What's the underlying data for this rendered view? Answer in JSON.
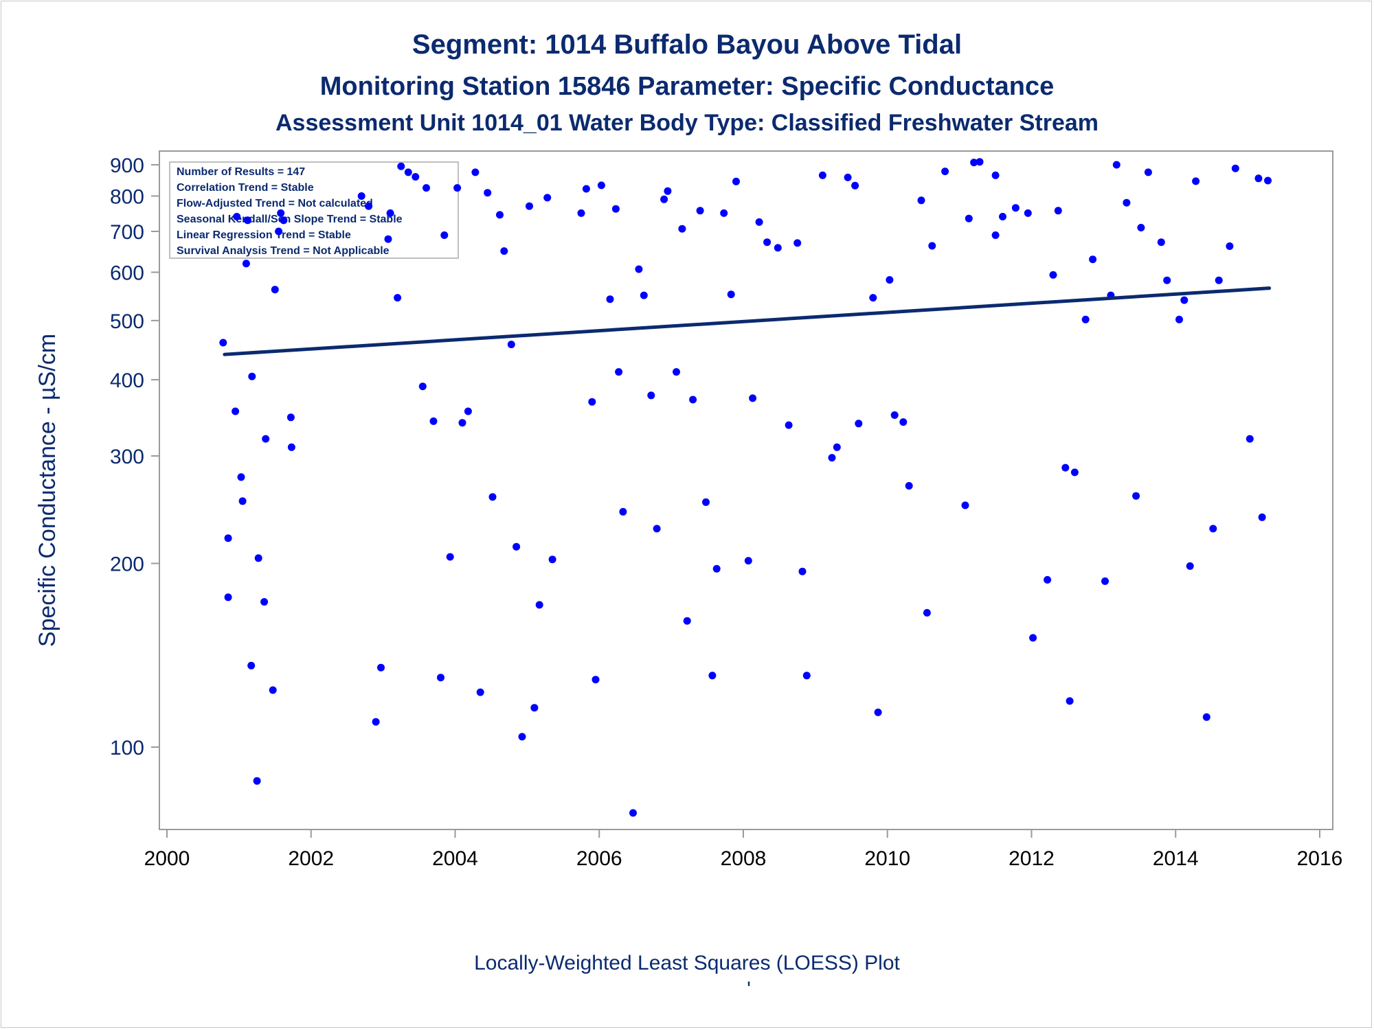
{
  "titles": {
    "line1": "Segment: 1014  Buffalo Bayou Above Tidal",
    "line2": "Monitoring Station 15846 Parameter: Specific Conductance",
    "line3": "Assessment Unit 1014_01   Water Body Type: Classified Freshwater Stream"
  },
  "stats_box": [
    "Number of Results = 147",
    "Correlation Trend = Stable",
    "Flow-Adjusted Trend = Not calculated",
    "Seasonal Kendall/Sen Slope Trend = Stable",
    "Linear Regression Trend = Stable",
    "Survival Analysis Trend = Not Applicable"
  ],
  "footer": {
    "caption": "Locally-Weighted Least Squares (LOESS) Plot",
    "mark": "'"
  },
  "colors": {
    "title": "#0b2a6f",
    "points": "#0000ff",
    "trend_line": "#0b2a6f",
    "axis": "#9a9a9a"
  },
  "chart_data": {
    "type": "scatter",
    "title": "Segment: 1014  Buffalo Bayou Above Tidal",
    "xlabel": "",
    "ylabel": "Specific Conductance -  µS/cm",
    "x_scale": "linear (year)",
    "y_scale": "log",
    "xlim": [
      2000,
      2016
    ],
    "ylim": [
      77,
      960
    ],
    "x_ticks": [
      "2000",
      "2002",
      "2004",
      "2006",
      "2008",
      "2010",
      "2012",
      "2014",
      "2016"
    ],
    "y_ticks": [
      "100",
      "200",
      "300",
      "400",
      "500",
      "600",
      "700",
      "800",
      "900"
    ],
    "grid": false,
    "trend_line": {
      "name": "LOESS",
      "x": [
        2000.8,
        2015.3
      ],
      "y": [
        440,
        565
      ]
    },
    "points": [
      [
        2000.78,
        460
      ],
      [
        2000.85,
        220
      ],
      [
        2000.85,
        176
      ],
      [
        2000.95,
        355
      ],
      [
        2000.97,
        740
      ],
      [
        2001.03,
        277
      ],
      [
        2001.05,
        253
      ],
      [
        2001.1,
        620
      ],
      [
        2001.12,
        730
      ],
      [
        2001.17,
        136
      ],
      [
        2001.18,
        405
      ],
      [
        2001.25,
        88
      ],
      [
        2001.27,
        204
      ],
      [
        2001.35,
        173
      ],
      [
        2001.37,
        320
      ],
      [
        2001.47,
        124
      ],
      [
        2001.5,
        562
      ],
      [
        2001.55,
        700
      ],
      [
        2001.58,
        750
      ],
      [
        2001.62,
        730
      ],
      [
        2001.72,
        347
      ],
      [
        2001.73,
        310
      ],
      [
        2002.7,
        800
      ],
      [
        2002.8,
        770
      ],
      [
        2002.9,
        110
      ],
      [
        2002.97,
        135
      ],
      [
        2003.07,
        680
      ],
      [
        2003.1,
        750
      ],
      [
        2003.2,
        545
      ],
      [
        2003.25,
        895
      ],
      [
        2003.35,
        875
      ],
      [
        2003.45,
        860
      ],
      [
        2003.55,
        390
      ],
      [
        2003.6,
        825
      ],
      [
        2003.7,
        342
      ],
      [
        2003.8,
        130
      ],
      [
        2003.85,
        690
      ],
      [
        2003.93,
        205
      ],
      [
        2004.03,
        825
      ],
      [
        2004.1,
        340
      ],
      [
        2004.18,
        355
      ],
      [
        2004.28,
        875
      ],
      [
        2004.35,
        123
      ],
      [
        2004.45,
        810
      ],
      [
        2004.52,
        257
      ],
      [
        2004.62,
        745
      ],
      [
        2004.68,
        650
      ],
      [
        2004.78,
        457
      ],
      [
        2004.85,
        213
      ],
      [
        2004.93,
        104
      ],
      [
        2005.03,
        770
      ],
      [
        2005.1,
        116
      ],
      [
        2005.17,
        171
      ],
      [
        2005.28,
        795
      ],
      [
        2005.35,
        203
      ],
      [
        2005.75,
        750
      ],
      [
        2005.82,
        822
      ],
      [
        2005.9,
        368
      ],
      [
        2005.95,
        129
      ],
      [
        2006.03,
        833
      ],
      [
        2006.15,
        542
      ],
      [
        2006.23,
        762
      ],
      [
        2006.27,
        412
      ],
      [
        2006.33,
        243
      ],
      [
        2006.47,
        78
      ],
      [
        2006.55,
        607
      ],
      [
        2006.62,
        550
      ],
      [
        2006.72,
        377
      ],
      [
        2006.8,
        228
      ],
      [
        2006.9,
        790
      ],
      [
        2006.95,
        815
      ],
      [
        2007.07,
        412
      ],
      [
        2007.15,
        707
      ],
      [
        2007.22,
        161
      ],
      [
        2007.3,
        371
      ],
      [
        2007.4,
        757
      ],
      [
        2007.48,
        252
      ],
      [
        2007.57,
        131
      ],
      [
        2007.63,
        196
      ],
      [
        2007.73,
        750
      ],
      [
        2007.83,
        552
      ],
      [
        2007.9,
        845
      ],
      [
        2008.07,
        202
      ],
      [
        2008.13,
        373
      ],
      [
        2008.22,
        725
      ],
      [
        2008.33,
        672
      ],
      [
        2008.48,
        658
      ],
      [
        2008.63,
        337
      ],
      [
        2008.75,
        670
      ],
      [
        2008.82,
        194
      ],
      [
        2008.88,
        131
      ],
      [
        2009.1,
        865
      ],
      [
        2009.23,
        298
      ],
      [
        2009.3,
        310
      ],
      [
        2009.45,
        858
      ],
      [
        2009.55,
        832
      ],
      [
        2009.6,
        339
      ],
      [
        2009.8,
        545
      ],
      [
        2009.87,
        114
      ],
      [
        2010.03,
        583
      ],
      [
        2010.1,
        350
      ],
      [
        2010.22,
        341
      ],
      [
        2010.3,
        268
      ],
      [
        2010.47,
        787
      ],
      [
        2010.55,
        166
      ],
      [
        2010.62,
        663
      ],
      [
        2010.8,
        878
      ],
      [
        2011.08,
        249
      ],
      [
        2011.13,
        735
      ],
      [
        2011.2,
        908
      ],
      [
        2011.28,
        910
      ],
      [
        2011.5,
        690
      ],
      [
        2011.5,
        865
      ],
      [
        2011.6,
        740
      ],
      [
        2011.78,
        765
      ],
      [
        2011.95,
        750
      ],
      [
        2012.02,
        151
      ],
      [
        2012.22,
        188
      ],
      [
        2012.3,
        594
      ],
      [
        2012.37,
        757
      ],
      [
        2012.47,
        287
      ],
      [
        2012.53,
        119
      ],
      [
        2012.6,
        282
      ],
      [
        2012.75,
        502
      ],
      [
        2012.85,
        630
      ],
      [
        2013.02,
        187
      ],
      [
        2013.1,
        550
      ],
      [
        2013.18,
        900
      ],
      [
        2013.32,
        780
      ],
      [
        2013.45,
        258
      ],
      [
        2013.52,
        710
      ],
      [
        2013.62,
        875
      ],
      [
        2013.8,
        672
      ],
      [
        2013.88,
        582
      ],
      [
        2014.05,
        502
      ],
      [
        2014.12,
        540
      ],
      [
        2014.2,
        198
      ],
      [
        2014.28,
        846
      ],
      [
        2014.43,
        112
      ],
      [
        2014.52,
        228
      ],
      [
        2014.6,
        582
      ],
      [
        2014.75,
        662
      ],
      [
        2014.83,
        888
      ],
      [
        2015.03,
        320
      ],
      [
        2015.15,
        855
      ],
      [
        2015.2,
        238
      ],
      [
        2015.28,
        848
      ]
    ]
  }
}
